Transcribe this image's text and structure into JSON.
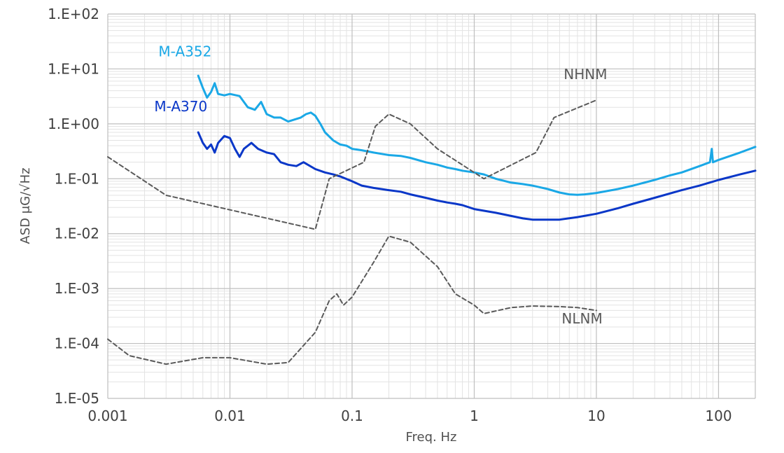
{
  "chart_data": {
    "type": "line",
    "xscale": "log",
    "yscale": "log",
    "xlim": [
      0.001,
      200
    ],
    "ylim": [
      1e-05,
      100
    ],
    "xlabel": "Freq. Hz",
    "ylabel": "ASD μG/√Hz",
    "x_ticks": [
      0.001,
      0.01,
      0.1,
      1,
      10,
      100
    ],
    "x_tick_labels": [
      "0.001",
      "0.01",
      "0.1",
      "1",
      "10",
      "100"
    ],
    "y_ticks": [
      1e-05,
      0.0001,
      0.001,
      0.01,
      0.1,
      1,
      10,
      100
    ],
    "y_tick_labels": [
      "1.E-05",
      "1.E-04",
      "1.E-03",
      "1.E-02",
      "1.E-01",
      "1.E+00",
      "1.E+01",
      "1.E+02"
    ],
    "grid": true,
    "series": [
      {
        "name": "M-A352",
        "color": "#1aa8e6",
        "dash": "solid",
        "x": [
          0.0055,
          0.006,
          0.0065,
          0.007,
          0.0075,
          0.008,
          0.009,
          0.01,
          0.012,
          0.014,
          0.016,
          0.018,
          0.02,
          0.023,
          0.026,
          0.03,
          0.034,
          0.038,
          0.042,
          0.046,
          0.05,
          0.055,
          0.06,
          0.07,
          0.08,
          0.09,
          0.1,
          0.12,
          0.15,
          0.18,
          0.2,
          0.25,
          0.3,
          0.4,
          0.5,
          0.6,
          0.7,
          0.8,
          1,
          1.2,
          1.5,
          2,
          2.5,
          3,
          4,
          5,
          6,
          7,
          8,
          10,
          15,
          20,
          30,
          40,
          50,
          70,
          85,
          88,
          90,
          95,
          100,
          150,
          200
        ],
        "y": [
          7.5,
          4.5,
          3.0,
          3.8,
          5.5,
          3.5,
          3.3,
          3.5,
          3.2,
          2.0,
          1.8,
          2.5,
          1.5,
          1.3,
          1.3,
          1.1,
          1.2,
          1.3,
          1.5,
          1.6,
          1.4,
          1.0,
          0.7,
          0.5,
          0.42,
          0.4,
          0.35,
          0.33,
          0.3,
          0.28,
          0.27,
          0.26,
          0.24,
          0.2,
          0.18,
          0.16,
          0.15,
          0.14,
          0.13,
          0.12,
          0.1,
          0.085,
          0.08,
          0.075,
          0.065,
          0.056,
          0.052,
          0.051,
          0.052,
          0.055,
          0.065,
          0.075,
          0.095,
          0.115,
          0.13,
          0.17,
          0.2,
          0.35,
          0.2,
          0.21,
          0.22,
          0.3,
          0.38
        ]
      },
      {
        "name": "M-A370",
        "color": "#0a37c8",
        "dash": "solid",
        "x": [
          0.0055,
          0.006,
          0.0065,
          0.007,
          0.0075,
          0.008,
          0.009,
          0.01,
          0.011,
          0.012,
          0.013,
          0.015,
          0.017,
          0.02,
          0.023,
          0.026,
          0.03,
          0.035,
          0.04,
          0.05,
          0.06,
          0.07,
          0.08,
          0.1,
          0.12,
          0.15,
          0.2,
          0.25,
          0.3,
          0.4,
          0.5,
          0.6,
          0.7,
          0.8,
          1,
          1.5,
          2,
          2.5,
          3,
          4,
          5,
          7,
          10,
          15,
          20,
          30,
          50,
          70,
          100,
          150,
          200
        ],
        "y": [
          0.7,
          0.45,
          0.35,
          0.42,
          0.3,
          0.45,
          0.6,
          0.55,
          0.35,
          0.25,
          0.35,
          0.45,
          0.35,
          0.3,
          0.28,
          0.2,
          0.18,
          0.17,
          0.2,
          0.15,
          0.13,
          0.12,
          0.11,
          0.09,
          0.075,
          0.068,
          0.062,
          0.058,
          0.052,
          0.045,
          0.04,
          0.037,
          0.035,
          0.033,
          0.028,
          0.024,
          0.021,
          0.019,
          0.018,
          0.018,
          0.018,
          0.02,
          0.023,
          0.029,
          0.035,
          0.045,
          0.062,
          0.075,
          0.095,
          0.12,
          0.14
        ]
      },
      {
        "name": "NHNM",
        "color": "#5a5a5a",
        "dash": "dashed",
        "x": [
          0.001,
          0.003,
          0.05,
          0.065,
          0.125,
          0.155,
          0.2,
          0.3,
          0.5,
          1.2,
          3.2,
          4.5,
          10
        ],
        "y": [
          0.25,
          0.05,
          0.012,
          0.1,
          0.2,
          0.9,
          1.5,
          1.0,
          0.35,
          0.1,
          0.3,
          1.3,
          2.7
        ]
      },
      {
        "name": "NLNM",
        "color": "#5a5a5a",
        "dash": "dashed",
        "x": [
          0.001,
          0.0015,
          0.003,
          0.006,
          0.01,
          0.02,
          0.03,
          0.05,
          0.065,
          0.075,
          0.085,
          0.1,
          0.15,
          0.2,
          0.3,
          0.5,
          0.7,
          1.0,
          1.2,
          2,
          3,
          5,
          7,
          10
        ],
        "y": [
          0.00012,
          6e-05,
          4.2e-05,
          5.5e-05,
          5.5e-05,
          4.2e-05,
          4.5e-05,
          0.00016,
          0.0006,
          0.0008,
          0.0005,
          0.0007,
          0.003,
          0.009,
          0.007,
          0.0025,
          0.0008,
          0.0005,
          0.00035,
          0.00045,
          0.00048,
          0.00047,
          0.00045,
          0.0004
        ]
      }
    ],
    "annotations": [
      {
        "text": "M-A352",
        "x": 0.0026,
        "y": 17,
        "color": "#1aa8e6"
      },
      {
        "text": "M-A370",
        "x": 0.0024,
        "y": 1.7,
        "color": "#0a37c8"
      },
      {
        "text": "NHNM",
        "x": 5.4,
        "y": 6.5,
        "color": "#5a5a5a"
      },
      {
        "text": "NLNM",
        "x": 5.2,
        "y": 0.00023,
        "color": "#5a5a5a"
      }
    ]
  }
}
